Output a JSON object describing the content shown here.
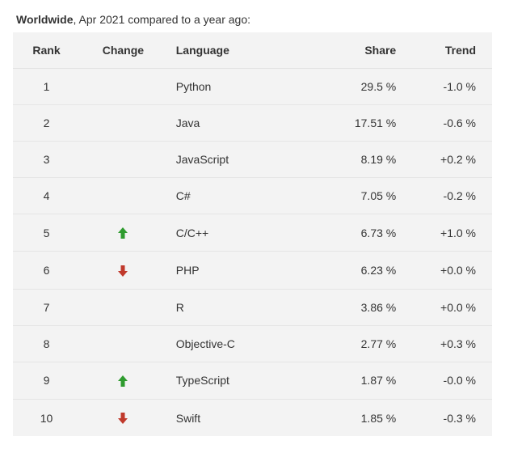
{
  "caption": {
    "region": "Worldwide",
    "rest": ", Apr 2021 compared to a year ago:"
  },
  "table": {
    "type": "table",
    "background_color": "#f3f3f3",
    "border_color": "#e5e5e5",
    "text_color": "#333333",
    "font_size_pt": 11,
    "columns": [
      {
        "key": "rank",
        "label": "Rank",
        "align": "center"
      },
      {
        "key": "change",
        "label": "Change",
        "align": "center"
      },
      {
        "key": "lang",
        "label": "Language",
        "align": "left"
      },
      {
        "key": "share",
        "label": "Share",
        "align": "right"
      },
      {
        "key": "trend",
        "label": "Trend",
        "align": "right"
      }
    ],
    "arrow_colors": {
      "up": "#2e9b2e",
      "down": "#c0392b"
    },
    "rows": [
      {
        "rank": "1",
        "change": "",
        "language": "Python",
        "share": "29.5 %",
        "trend": "-1.0 %"
      },
      {
        "rank": "2",
        "change": "",
        "language": "Java",
        "share": "17.51 %",
        "trend": "-0.6 %"
      },
      {
        "rank": "3",
        "change": "",
        "language": "JavaScript",
        "share": "8.19 %",
        "trend": "+0.2 %"
      },
      {
        "rank": "4",
        "change": "",
        "language": "C#",
        "share": "7.05 %",
        "trend": "-0.2 %"
      },
      {
        "rank": "5",
        "change": "up",
        "language": "C/C++",
        "share": "6.73 %",
        "trend": "+1.0 %"
      },
      {
        "rank": "6",
        "change": "down",
        "language": "PHP",
        "share": "6.23 %",
        "trend": "+0.0 %"
      },
      {
        "rank": "7",
        "change": "",
        "language": "R",
        "share": "3.86 %",
        "trend": "+0.0 %"
      },
      {
        "rank": "8",
        "change": "",
        "language": "Objective-C",
        "share": "2.77 %",
        "trend": "+0.3 %"
      },
      {
        "rank": "9",
        "change": "up",
        "language": "TypeScript",
        "share": "1.87 %",
        "trend": "-0.0 %"
      },
      {
        "rank": "10",
        "change": "down",
        "language": "Swift",
        "share": "1.85 %",
        "trend": "-0.3 %"
      }
    ]
  }
}
